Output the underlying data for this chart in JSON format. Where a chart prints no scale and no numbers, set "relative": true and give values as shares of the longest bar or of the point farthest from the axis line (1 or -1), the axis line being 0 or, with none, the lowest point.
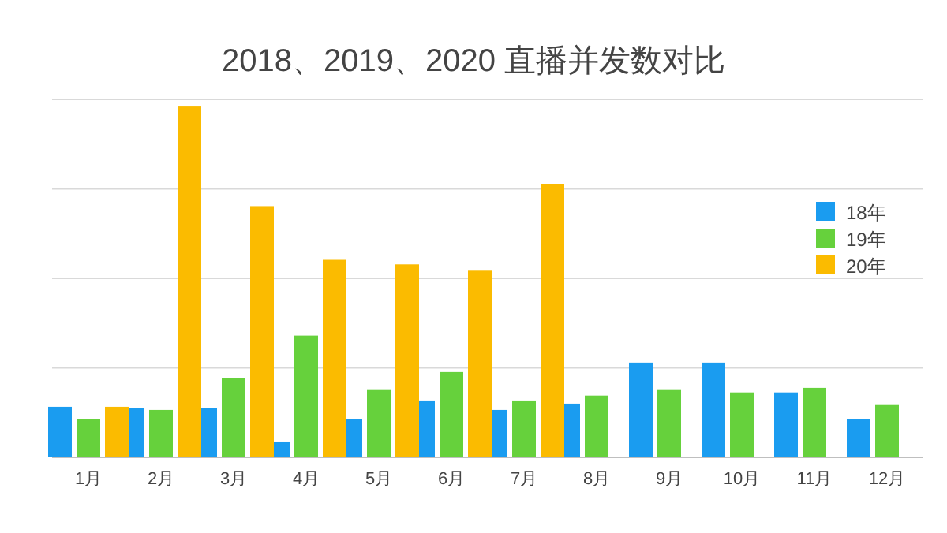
{
  "chart_data": {
    "type": "bar",
    "title": "2018、2019、2020 直播并发数对比",
    "relative": true,
    "grid": "y",
    "legend": "right",
    "categories": [
      "1月",
      "2月",
      "3月",
      "4月",
      "5月",
      "6月",
      "7月",
      "8月",
      "9月",
      "10月",
      "11月",
      "12月"
    ],
    "series": [
      {
        "name": "18年",
        "color": "#1a9cf0",
        "values": [
          0.144,
          0.14,
          0.14,
          0.045,
          0.108,
          0.162,
          0.135,
          0.153,
          0.27,
          0.27,
          0.185,
          0.108
        ]
      },
      {
        "name": "19年",
        "color": "#66d13c",
        "values": [
          0.108,
          0.135,
          0.225,
          0.347,
          0.194,
          0.243,
          0.162,
          0.176,
          0.194,
          0.185,
          0.198,
          0.149
        ]
      },
      {
        "name": "20年",
        "color": "#fbbb00",
        "values": [
          0.144,
          1,
          0.716,
          0.563,
          0.55,
          0.532,
          0.779,
          null,
          null,
          null,
          null,
          null
        ]
      }
    ]
  }
}
